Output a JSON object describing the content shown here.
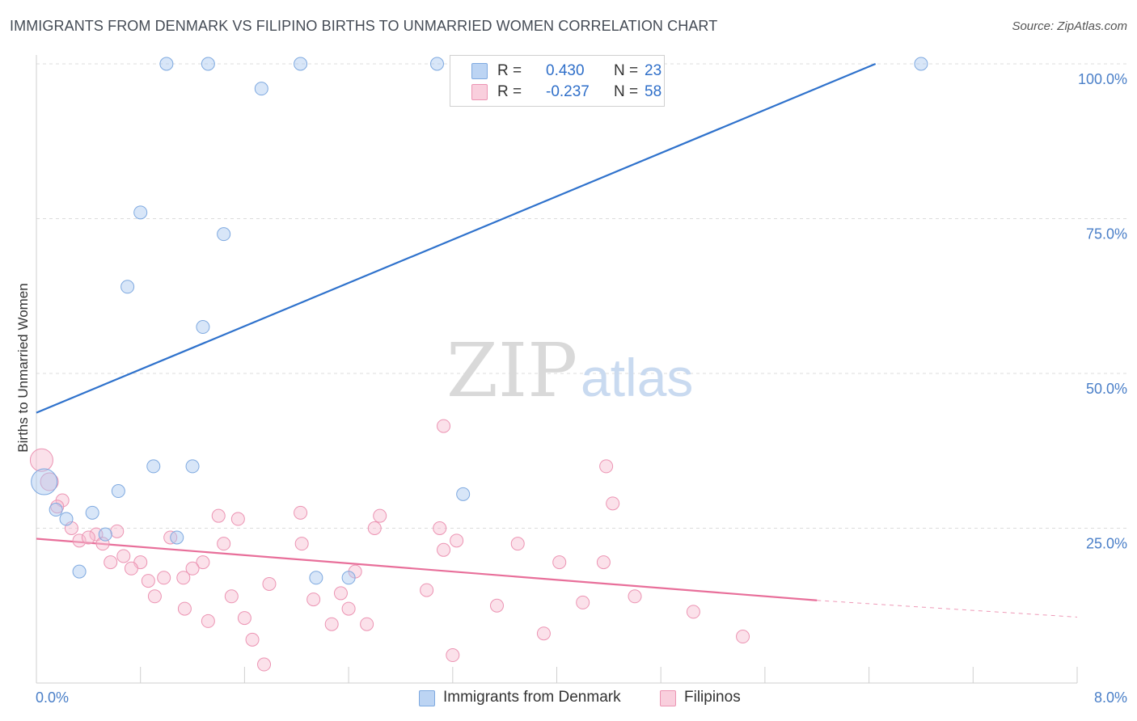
{
  "title": "IMMIGRANTS FROM DENMARK VS FILIPINO BIRTHS TO UNMARRIED WOMEN CORRELATION CHART",
  "source": "Source: ZipAtlas.com",
  "watermark": {
    "zip": "ZIP",
    "atlas": "atlas"
  },
  "legend": {
    "r_label": "R =",
    "n_label": "N =",
    "rows": [
      {
        "r": "0.430",
        "n": "23"
      },
      {
        "r": "-0.237",
        "n": "58"
      }
    ]
  },
  "chart_data": {
    "type": "scatter",
    "title": "IMMIGRANTS FROM DENMARK VS FILIPINO BIRTHS TO UNMARRIED WOMEN CORRELATION CHART",
    "xlabel": "",
    "ylabel": "Births to Unmarried Women",
    "xlim": [
      0,
      8
    ],
    "ylim": [
      0,
      100
    ],
    "x_tick_labels": [
      "0.0%",
      "8.0%"
    ],
    "y_ticks": [
      25,
      50,
      75,
      100
    ],
    "y_tick_labels": [
      "25.0%",
      "50.0%",
      "75.0%",
      "100.0%"
    ],
    "grid": true,
    "legend_position": "bottom-center",
    "series": [
      {
        "name": "Immigrants from Denmark",
        "color": "#a9c8ef",
        "stroke": "#7ea9e0",
        "line_color": "#2f72cc",
        "trend": {
          "x": [
            0.0,
            6.45
          ],
          "y": [
            40.0,
            100.0
          ]
        },
        "points": [
          {
            "x": 1.0,
            "y": 100.0
          },
          {
            "x": 1.32,
            "y": 100.0
          },
          {
            "x": 2.03,
            "y": 100.0
          },
          {
            "x": 3.08,
            "y": 100.0
          },
          {
            "x": 6.8,
            "y": 100.0
          },
          {
            "x": 1.73,
            "y": 96.0
          },
          {
            "x": 0.8,
            "y": 76.0
          },
          {
            "x": 1.44,
            "y": 72.5
          },
          {
            "x": 0.7,
            "y": 64.0
          },
          {
            "x": 1.28,
            "y": 57.5
          },
          {
            "x": 0.9,
            "y": 35.0
          },
          {
            "x": 1.2,
            "y": 35.0
          },
          {
            "x": 0.06,
            "y": 32.5
          },
          {
            "x": 0.63,
            "y": 31.0
          },
          {
            "x": 3.28,
            "y": 30.5
          },
          {
            "x": 0.15,
            "y": 28.0
          },
          {
            "x": 0.43,
            "y": 27.5
          },
          {
            "x": 0.23,
            "y": 26.5
          },
          {
            "x": 0.53,
            "y": 24.0
          },
          {
            "x": 1.08,
            "y": 23.5
          },
          {
            "x": 0.33,
            "y": 18.0
          },
          {
            "x": 2.15,
            "y": 17.0
          },
          {
            "x": 2.4,
            "y": 17.0
          }
        ]
      },
      {
        "name": "Filipinos",
        "color": "#f6bcd0",
        "stroke": "#ec94b3",
        "line_color": "#e86f9a",
        "trend": {
          "x": [
            0.0,
            6.0
          ],
          "y": [
            22.0,
            14.0
          ]
        },
        "trend_dashed": {
          "x": [
            6.0,
            8.0
          ],
          "y": [
            14.0,
            11.3
          ]
        },
        "points": [
          {
            "x": 0.04,
            "y": 36.0
          },
          {
            "x": 0.1,
            "y": 32.5
          },
          {
            "x": 0.2,
            "y": 29.5
          },
          {
            "x": 0.16,
            "y": 28.5
          },
          {
            "x": 3.13,
            "y": 41.5
          },
          {
            "x": 4.38,
            "y": 35.0
          },
          {
            "x": 4.43,
            "y": 29.0
          },
          {
            "x": 1.4,
            "y": 27.0
          },
          {
            "x": 1.55,
            "y": 26.5
          },
          {
            "x": 2.03,
            "y": 27.5
          },
          {
            "x": 2.64,
            "y": 27.0
          },
          {
            "x": 0.27,
            "y": 25.0
          },
          {
            "x": 0.46,
            "y": 24.0
          },
          {
            "x": 0.62,
            "y": 24.5
          },
          {
            "x": 2.6,
            "y": 25.0
          },
          {
            "x": 3.1,
            "y": 25.0
          },
          {
            "x": 0.33,
            "y": 23.0
          },
          {
            "x": 0.4,
            "y": 23.5
          },
          {
            "x": 1.03,
            "y": 23.5
          },
          {
            "x": 0.51,
            "y": 22.5
          },
          {
            "x": 1.44,
            "y": 22.5
          },
          {
            "x": 2.04,
            "y": 22.5
          },
          {
            "x": 3.23,
            "y": 23.0
          },
          {
            "x": 3.7,
            "y": 22.5
          },
          {
            "x": 3.13,
            "y": 21.5
          },
          {
            "x": 0.67,
            "y": 20.5
          },
          {
            "x": 0.57,
            "y": 19.5
          },
          {
            "x": 0.8,
            "y": 19.5
          },
          {
            "x": 1.28,
            "y": 19.5
          },
          {
            "x": 4.02,
            "y": 19.5
          },
          {
            "x": 4.36,
            "y": 19.5
          },
          {
            "x": 0.73,
            "y": 18.5
          },
          {
            "x": 1.2,
            "y": 18.5
          },
          {
            "x": 2.45,
            "y": 18.0
          },
          {
            "x": 0.86,
            "y": 16.5
          },
          {
            "x": 0.98,
            "y": 17.0
          },
          {
            "x": 1.13,
            "y": 17.0
          },
          {
            "x": 1.79,
            "y": 16.0
          },
          {
            "x": 3.0,
            "y": 15.0
          },
          {
            "x": 0.91,
            "y": 14.0
          },
          {
            "x": 1.5,
            "y": 14.0
          },
          {
            "x": 2.13,
            "y": 13.5
          },
          {
            "x": 2.34,
            "y": 14.5
          },
          {
            "x": 4.2,
            "y": 13.0
          },
          {
            "x": 4.6,
            "y": 14.0
          },
          {
            "x": 1.14,
            "y": 12.0
          },
          {
            "x": 2.4,
            "y": 12.0
          },
          {
            "x": 3.54,
            "y": 12.5
          },
          {
            "x": 5.05,
            "y": 11.5
          },
          {
            "x": 1.32,
            "y": 10.0
          },
          {
            "x": 1.6,
            "y": 10.5
          },
          {
            "x": 2.27,
            "y": 9.5
          },
          {
            "x": 2.54,
            "y": 9.5
          },
          {
            "x": 1.66,
            "y": 7.0
          },
          {
            "x": 3.9,
            "y": 8.0
          },
          {
            "x": 5.43,
            "y": 7.5
          },
          {
            "x": 3.2,
            "y": 4.5
          },
          {
            "x": 1.75,
            "y": 3.0
          }
        ]
      }
    ]
  }
}
